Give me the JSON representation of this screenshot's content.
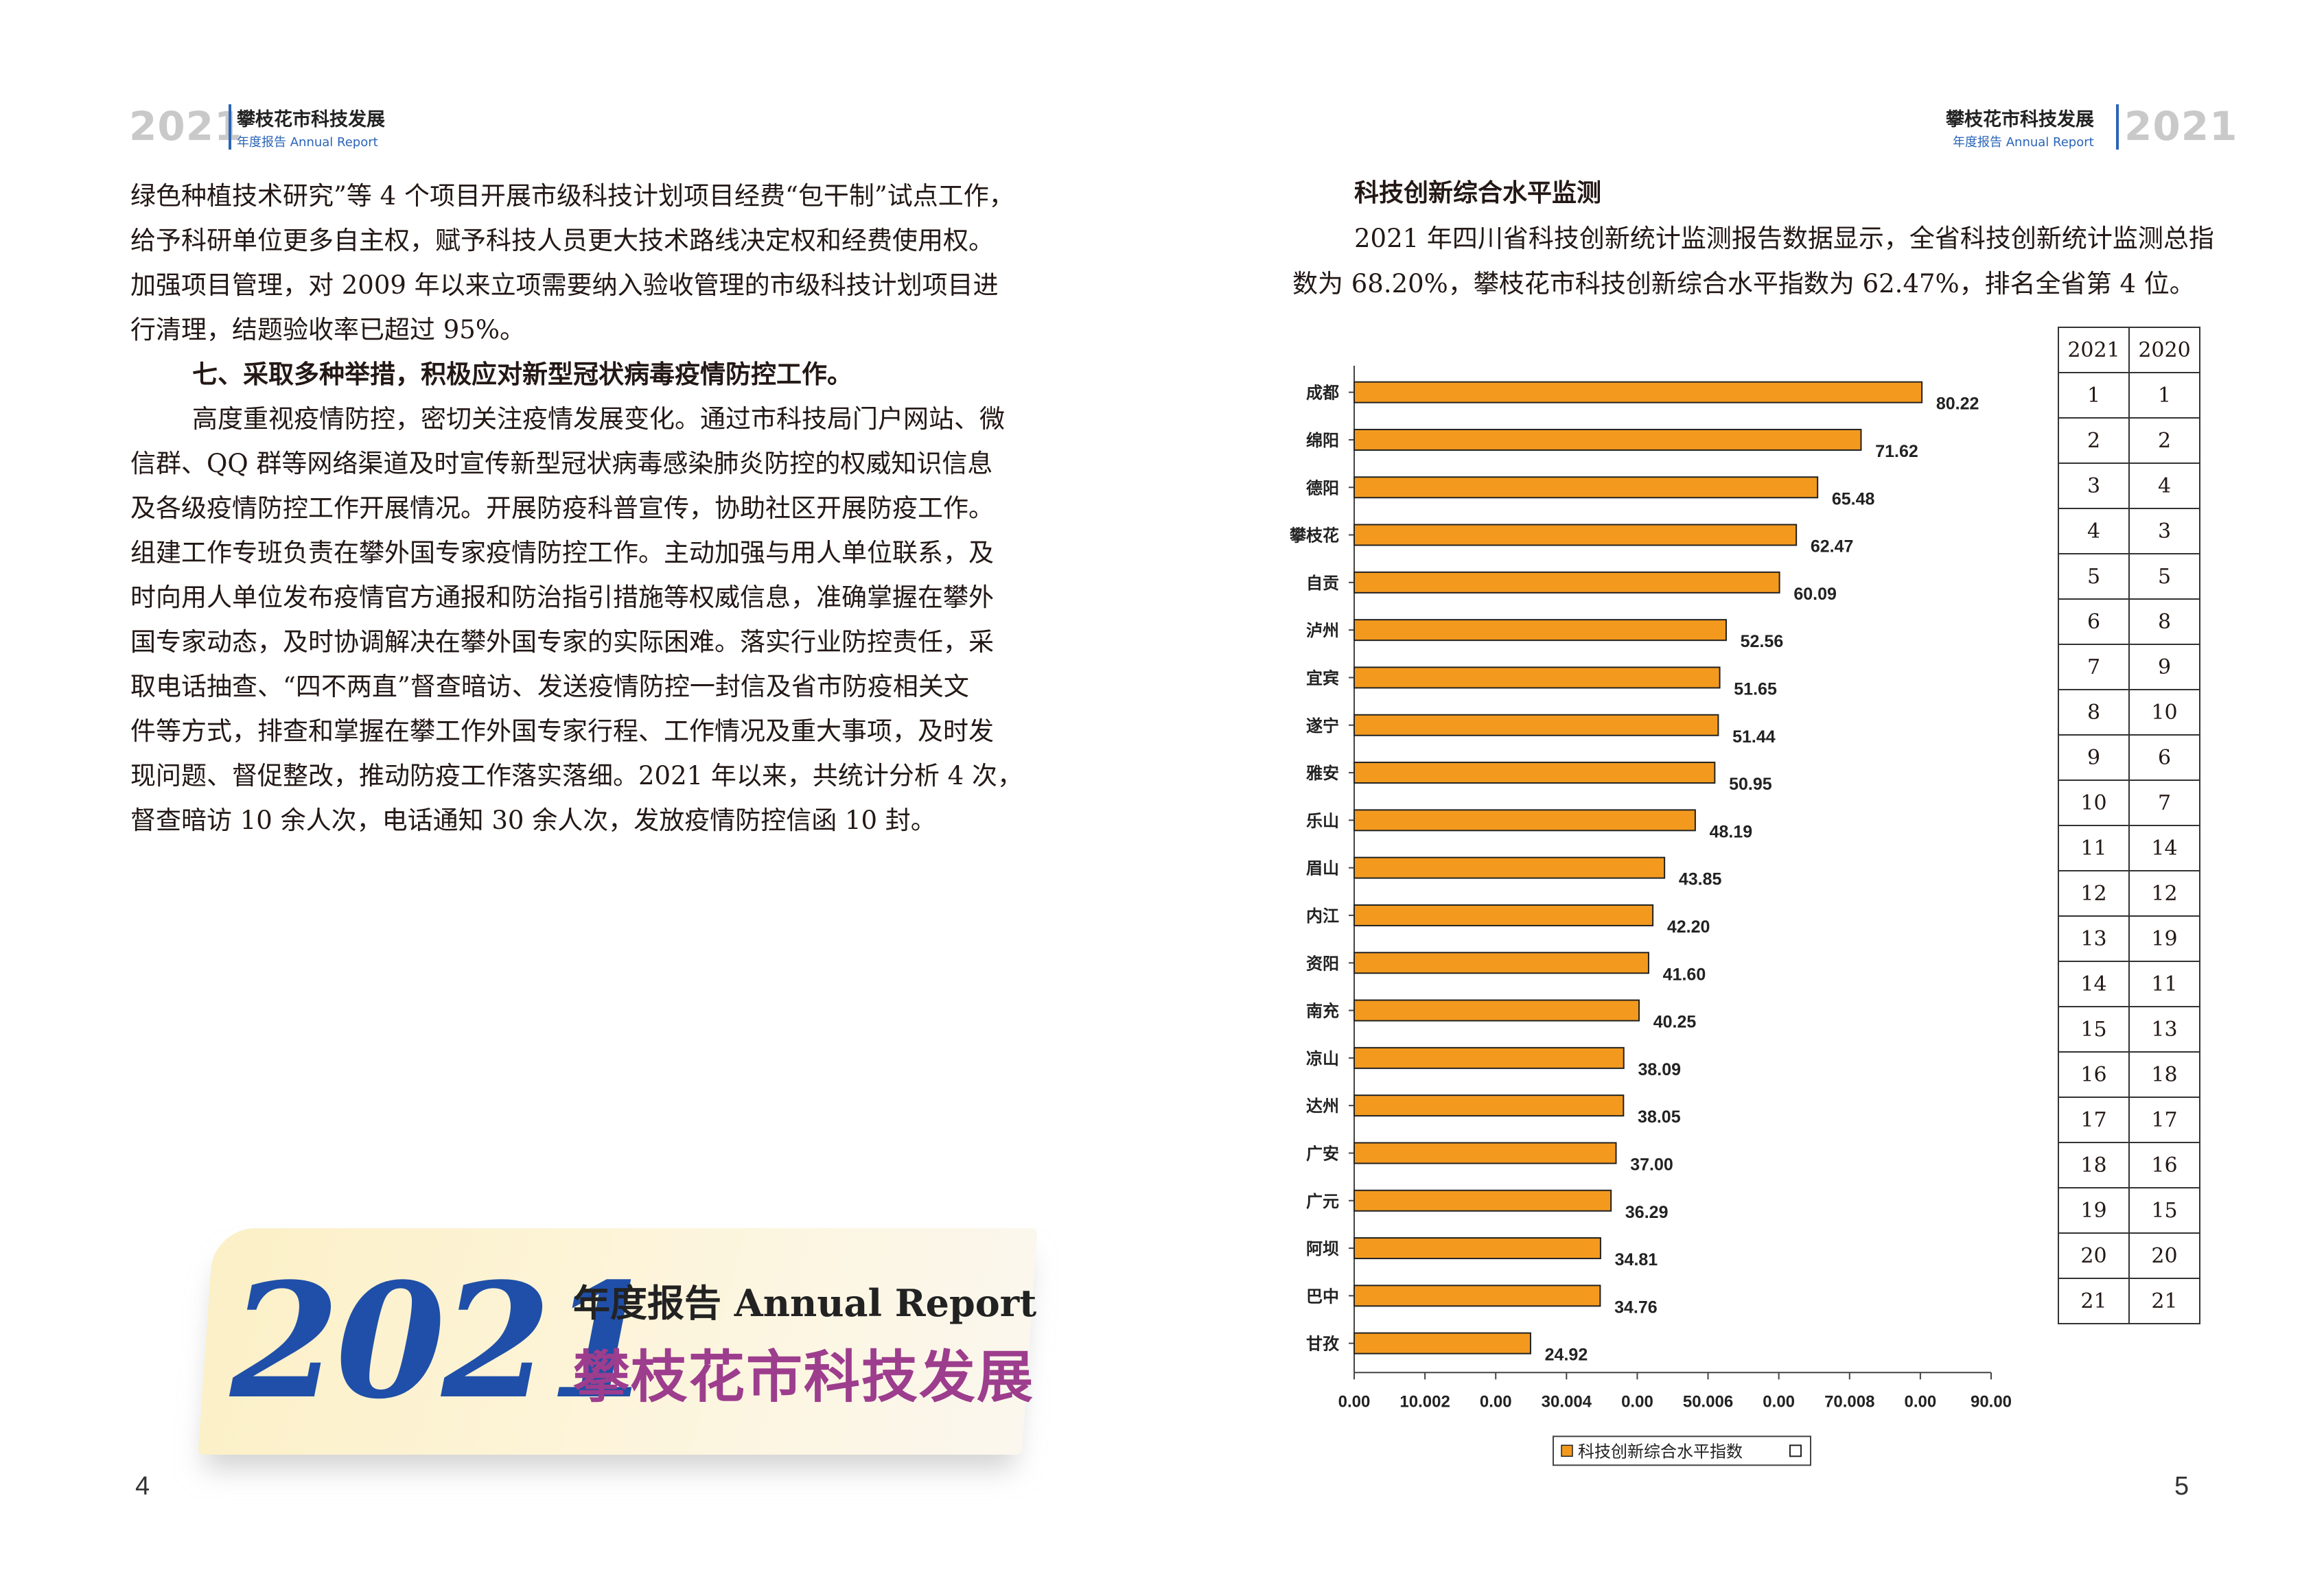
{
  "left_page": {
    "header": {
      "year": "2021",
      "title": "攀枝花市科技发展",
      "subtitle": "年度报告  Annual Report"
    },
    "paragraph1": [
      "绿色种植技术研究”等 4 个项目开展市级科技计划项目经费“包干制”试点工作，",
      "给予科研单位更多自主权，赋予科技人员更大技术路线决定权和经费使用权。",
      "加强项目管理，对 2009 年以来立项需要纳入验收管理的市级科技计划项目进",
      "行清理，结题验收率已超过 95%。"
    ],
    "heading": "七、采取多种举措，积极应对新型冠状病毒疫情防控工作。",
    "paragraph2": [
      "高度重视疫情防控，密切关注疫情发展变化。通过市科技局门户网站、微",
      "信群、QQ 群等网络渠道及时宣传新型冠状病毒感染肺炎防控的权威知识信息",
      "及各级疫情防控工作开展情况。开展防疫科普宣传，协助社区开展防疫工作。",
      "组建工作专班负责在攀外国专家疫情防控工作。主动加强与用人单位联系，及",
      "时向用人单位发布疫情官方通报和防治指引措施等权威信息，准确掌握在攀外",
      "国专家动态，及时协调解决在攀外国专家的实际困难。落实行业防控责任，采",
      "取电话抽查、“四不两直”督查暗访、发送疫情防控一封信及省市防疫相关文",
      "件等方式，排查和掌握在攀工作外国专家行程、工作情况及重大事项，及时发",
      "现问题、督促整改，推动防疫工作落实落细。2021 年以来，共统计分析 4 次，",
      "督查暗访 10 余人次，电话通知 30 余人次，发放疫情防控信函 10 封。"
    ],
    "banner": {
      "year": "2021",
      "line1": "年度报告 Annual Report",
      "line2": "攀枝花市科技发展"
    },
    "page_number": "4"
  },
  "right_page": {
    "header": {
      "year": "2021",
      "title": "攀枝花市科技发展",
      "subtitle": "年度报告  Annual Report"
    },
    "section_title": "科技创新综合水平监测",
    "intro": "2021 年四川省科技创新统计监测报告数据显示，全省科技创新统计监测总指数为 68.20%，攀枝花市科技创新综合水平指数为 62.47%，排名全省第 4 位。",
    "page_number": "5",
    "colors": {
      "bar": "#f39a1e",
      "bar_border": "#222222"
    }
  },
  "chart_data": {
    "type": "bar",
    "orientation": "horizontal",
    "categories": [
      "成都",
      "绵阳",
      "德阳",
      "攀枝花",
      "自贡",
      "泸州",
      "宜宾",
      "遂宁",
      "雅安",
      "乐山",
      "眉山",
      "内江",
      "资阳",
      "南充",
      "凉山",
      "达州",
      "广安",
      "广元",
      "阿坝",
      "巴中",
      "甘孜"
    ],
    "series": [
      {
        "name": "科技创新综合水平指数",
        "values": [
          80.22,
          71.62,
          65.48,
          62.47,
          60.09,
          52.56,
          51.65,
          51.44,
          50.95,
          48.19,
          43.85,
          42.2,
          41.6,
          40.25,
          38.09,
          38.05,
          37.0,
          36.29,
          34.81,
          34.76,
          24.92
        ],
        "labels": [
          "80.22",
          "71.62",
          "65.48",
          "62.47",
          "60.09",
          "52.56",
          "51.65",
          "51.44",
          "50.95",
          "48.19",
          "43.85",
          "42.20",
          "41.60",
          "40.25",
          "38.09",
          "38.05",
          "37.00",
          "36.29",
          "34.81",
          "34.76",
          "24.92"
        ]
      }
    ],
    "xlim": [
      0,
      90
    ],
    "x_tick_labels": [
      "0.00",
      "10.002",
      "0.00",
      "30.004",
      "0.00",
      "50.006",
      "0.00",
      "70.008",
      "0.00",
      "90.00"
    ],
    "legend_position": "bottom",
    "rank_table": {
      "headers": [
        "2021",
        "2020"
      ],
      "rows": [
        [
          1,
          1
        ],
        [
          2,
          2
        ],
        [
          3,
          4
        ],
        [
          4,
          3
        ],
        [
          5,
          5
        ],
        [
          6,
          8
        ],
        [
          7,
          9
        ],
        [
          8,
          10
        ],
        [
          9,
          6
        ],
        [
          10,
          7
        ],
        [
          11,
          14
        ],
        [
          12,
          12
        ],
        [
          13,
          19
        ],
        [
          14,
          11
        ],
        [
          15,
          13
        ],
        [
          16,
          18
        ],
        [
          17,
          17
        ],
        [
          18,
          16
        ],
        [
          19,
          15
        ],
        [
          20,
          20
        ],
        [
          21,
          21
        ]
      ]
    }
  }
}
